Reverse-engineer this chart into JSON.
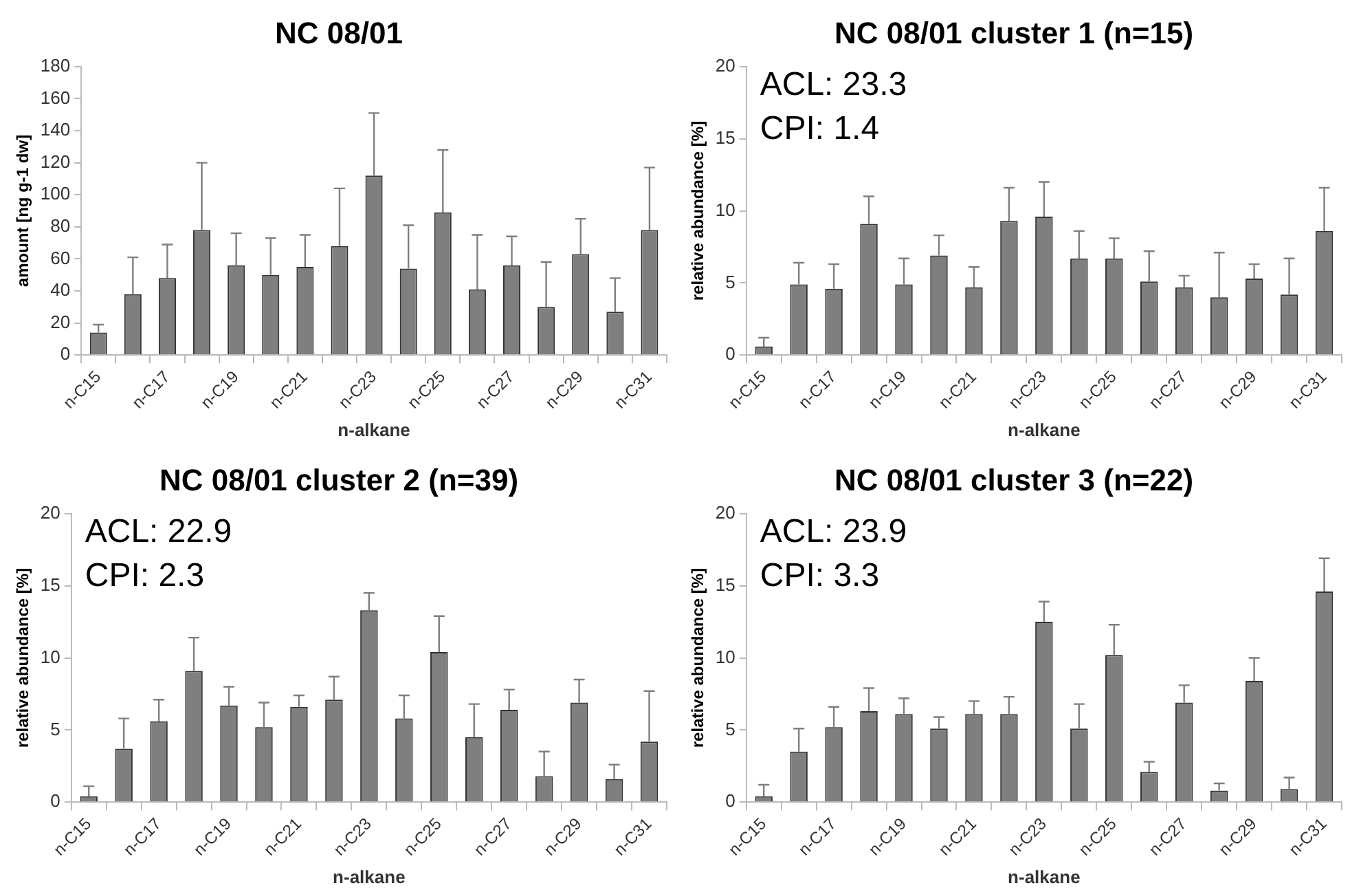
{
  "chart_data": [
    {
      "type": "bar",
      "title": "NC 08/01",
      "xlabel": "n-alkane",
      "ylabel": "amount [ng g-1 dw]",
      "categories": [
        "n-C15",
        null,
        "n-C17",
        null,
        "n-C19",
        null,
        "n-C21",
        null,
        "n-C23",
        null,
        "n-C25",
        null,
        "n-C27",
        null,
        "n-C29",
        null,
        "n-C31"
      ],
      "values": [
        14,
        38,
        48,
        78,
        56,
        50,
        55,
        68,
        112,
        54,
        89,
        41,
        56,
        30,
        63,
        27,
        78
      ],
      "errors": [
        [
          14,
          19
        ],
        [
          38,
          61
        ],
        [
          48,
          69
        ],
        [
          78,
          120
        ],
        [
          56,
          76
        ],
        [
          50,
          73
        ],
        [
          55,
          75
        ],
        [
          68,
          104
        ],
        [
          112,
          151
        ],
        [
          54,
          81
        ],
        [
          89,
          128
        ],
        [
          41,
          75
        ],
        [
          56,
          74
        ],
        [
          30,
          58
        ],
        [
          63,
          85
        ],
        [
          27,
          48
        ],
        [
          78,
          117
        ]
      ],
      "color": "#7f7f7f",
      "ylim": [
        0,
        180
      ],
      "yticks": [
        0,
        20,
        40,
        60,
        80,
        100,
        120,
        140,
        160,
        180
      ]
    },
    {
      "type": "bar",
      "title": "NC 08/01 cluster 1 (n=15)",
      "xlabel": "n-alkane",
      "ylabel": "relative abundance [%]",
      "categories": [
        "n-C15",
        null,
        "n-C17",
        null,
        "n-C19",
        null,
        "n-C21",
        null,
        "n-C23",
        null,
        "n-C25",
        null,
        "n-C27",
        null,
        "n-C29",
        null,
        "n-C31"
      ],
      "values": [
        0.6,
        4.9,
        4.6,
        9.1,
        4.9,
        6.9,
        4.7,
        9.3,
        9.6,
        6.7,
        6.7,
        5.1,
        4.7,
        4.0,
        5.3,
        4.2,
        8.6
      ],
      "errors": [
        [
          0.6,
          1.2
        ],
        [
          4.9,
          6.4
        ],
        [
          4.6,
          6.3
        ],
        [
          9.1,
          11.0
        ],
        [
          4.9,
          6.7
        ],
        [
          6.9,
          8.3
        ],
        [
          4.7,
          6.1
        ],
        [
          9.3,
          11.6
        ],
        [
          9.6,
          12.0
        ],
        [
          6.7,
          8.6
        ],
        [
          6.7,
          8.1
        ],
        [
          5.1,
          7.2
        ],
        [
          4.7,
          5.5
        ],
        [
          4.0,
          7.1
        ],
        [
          5.3,
          6.3
        ],
        [
          4.2,
          6.7
        ],
        [
          8.6,
          11.6
        ]
      ],
      "color": "#7f7f7f",
      "ylim": [
        0,
        20
      ],
      "yticks": [
        0,
        5,
        10,
        15,
        20
      ],
      "annotations": [
        "ACL: 23.3",
        "CPI: 1.4"
      ]
    },
    {
      "type": "bar",
      "title": "NC 08/01 cluster 2 (n=39)",
      "xlabel": "n-alkane",
      "ylabel": "relative abundance [%]",
      "categories": [
        "n-C15",
        null,
        "n-C17",
        null,
        "n-C19",
        null,
        "n-C21",
        null,
        "n-C23",
        null,
        "n-C25",
        null,
        "n-C27",
        null,
        "n-C29",
        null,
        "n-C31"
      ],
      "values": [
        0.4,
        3.7,
        5.6,
        9.1,
        6.7,
        5.2,
        6.6,
        7.1,
        13.3,
        5.8,
        10.4,
        4.5,
        6.4,
        1.8,
        6.9,
        1.6,
        4.2
      ],
      "errors": [
        [
          0.4,
          1.1
        ],
        [
          3.7,
          5.8
        ],
        [
          5.6,
          7.1
        ],
        [
          9.1,
          11.4
        ],
        [
          6.7,
          8.0
        ],
        [
          5.2,
          6.9
        ],
        [
          6.6,
          7.4
        ],
        [
          7.1,
          8.7
        ],
        [
          13.3,
          14.5
        ],
        [
          5.8,
          7.4
        ],
        [
          10.4,
          12.9
        ],
        [
          4.5,
          6.8
        ],
        [
          6.4,
          7.8
        ],
        [
          1.8,
          3.5
        ],
        [
          6.9,
          8.5
        ],
        [
          1.6,
          2.6
        ],
        [
          4.2,
          7.7
        ]
      ],
      "color": "#7f7f7f",
      "ylim": [
        0,
        20
      ],
      "yticks": [
        0,
        5,
        10,
        15,
        20
      ],
      "annotations": [
        "ACL: 22.9",
        "CPI: 2.3"
      ]
    },
    {
      "type": "bar",
      "title": "NC 08/01 cluster 3 (n=22)",
      "xlabel": "n-alkane",
      "ylabel": "relative abundance [%]",
      "categories": [
        "n-C15",
        null,
        "n-C17",
        null,
        "n-C19",
        null,
        "n-C21",
        null,
        "n-C23",
        null,
        "n-C25",
        null,
        "n-C27",
        null,
        "n-C29",
        null,
        "n-C31"
      ],
      "values": [
        0.4,
        3.5,
        5.2,
        6.3,
        6.1,
        5.1,
        6.1,
        6.1,
        12.5,
        5.1,
        10.2,
        2.1,
        6.9,
        0.8,
        8.4,
        0.9,
        14.6
      ],
      "errors": [
        [
          0.4,
          1.2
        ],
        [
          3.5,
          5.1
        ],
        [
          5.2,
          6.6
        ],
        [
          6.3,
          7.9
        ],
        [
          6.1,
          7.2
        ],
        [
          5.1,
          5.9
        ],
        [
          6.1,
          7.0
        ],
        [
          6.1,
          7.3
        ],
        [
          12.5,
          13.9
        ],
        [
          5.1,
          6.8
        ],
        [
          10.2,
          12.3
        ],
        [
          2.1,
          2.8
        ],
        [
          6.9,
          8.1
        ],
        [
          0.8,
          1.3
        ],
        [
          8.4,
          10.0
        ],
        [
          0.9,
          1.7
        ],
        [
          14.6,
          16.9
        ]
      ],
      "color": "#7f7f7f",
      "ylim": [
        0,
        20
      ],
      "yticks": [
        0,
        5,
        10,
        15,
        20
      ],
      "annotations": [
        "ACL: 23.9",
        "CPI: 3.3"
      ]
    }
  ]
}
